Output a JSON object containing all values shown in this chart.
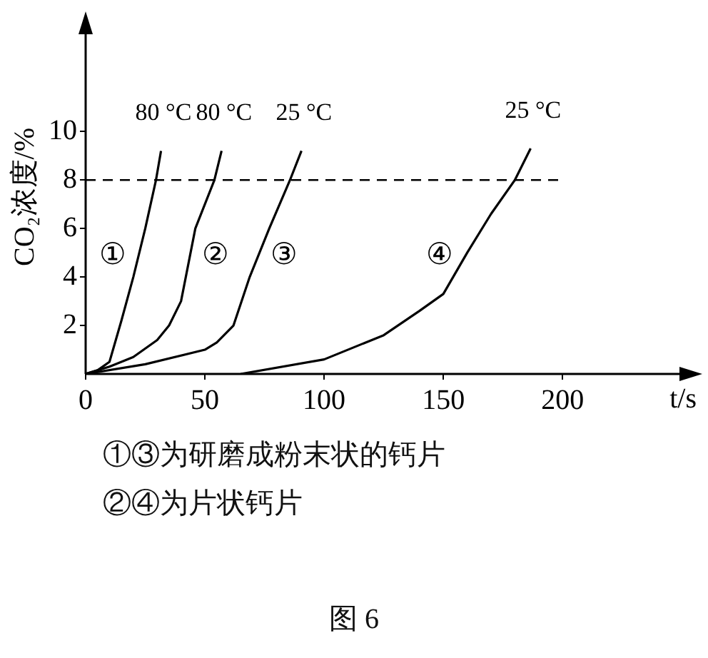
{
  "chart_data": {
    "type": "line",
    "xlabel": "t/s",
    "ylabel": "CO₂浓度/%",
    "xlim": [
      0,
      255
    ],
    "ylim": [
      0,
      14.6
    ],
    "xticks": [
      0,
      50,
      100,
      150,
      200
    ],
    "yticks": [
      2,
      4,
      6,
      8,
      10
    ],
    "grid": false,
    "legend": false,
    "marker": "none",
    "line_style": "solid",
    "series": [
      {
        "name": "80 °C",
        "color": "#000000",
        "x": [
          0,
          5,
          10,
          15,
          20,
          25,
          29.5,
          31.6
        ],
        "values": [
          0,
          0.15,
          0.5,
          2.2,
          4,
          6,
          8,
          9.2
        ]
      },
      {
        "name": "80 °C",
        "color": "#000000",
        "x": [
          0,
          10,
          20,
          30,
          35,
          40,
          46,
          54,
          57
        ],
        "values": [
          0,
          0.3,
          0.7,
          1.4,
          2,
          3,
          6,
          8,
          9.2
        ]
      },
      {
        "name": "25 °C",
        "color": "#000000",
        "x": [
          0,
          25,
          50,
          55,
          62,
          68.8,
          77,
          85.7,
          90.5
        ],
        "values": [
          0,
          0.4,
          1,
          1.3,
          2,
          4,
          6,
          8,
          9.2
        ]
      },
      {
        "name": "25 °C",
        "color": "#000000",
        "x": [
          65,
          100,
          125,
          140,
          150,
          160,
          170,
          180,
          186.6
        ],
        "values": [
          0,
          0.6,
          1.6,
          2.6,
          3.3,
          5,
          6.6,
          8,
          9.3
        ]
      }
    ],
    "ref_lines": [
      {
        "axis": "y",
        "value": 8,
        "line_style": "dashed",
        "color": "#000000"
      }
    ],
    "annotations": [
      "①",
      "②",
      "③",
      "④",
      "①③为研磨成粉末状的钙片",
      "②④为片状钙片",
      "图 6"
    ]
  }
}
